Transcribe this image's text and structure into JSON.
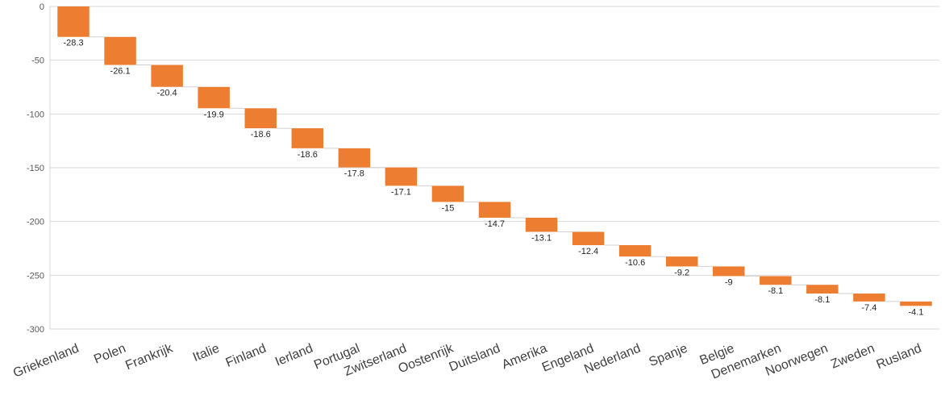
{
  "chart_data": {
    "type": "bar",
    "subtype": "waterfall",
    "categories": [
      "Griekenland",
      "Polen",
      "Frankrijk",
      "Italie",
      "Finland",
      "Ierland",
      "Portugal",
      "Zwitserland",
      "Oostenrijk",
      "Duitsland",
      "Amerika",
      "Engeland",
      "Nederland",
      "Spanje",
      "Belgie",
      "Denemarken",
      "Noorwegen",
      "Zweden",
      "Rusland"
    ],
    "values": [
      -28.3,
      -26.1,
      -20.4,
      -19.9,
      -18.6,
      -18.6,
      -17.8,
      -17.1,
      -15,
      -14.7,
      -13.1,
      -12.4,
      -10.6,
      -9.2,
      -9,
      -8.1,
      -8.1,
      -7.4,
      -4.1
    ],
    "data_labels": [
      "-28.3",
      "-26.1",
      "-20.4",
      "-19.9",
      "-18.6",
      "-18.6",
      "-17.8",
      "-17.1",
      "-15",
      "-14.7",
      "-13.1",
      "-12.4",
      "-10.6",
      "-9.2",
      "-9",
      "-8.1",
      "-8.1",
      "-7.4",
      "-4.1"
    ],
    "ylim": [
      -300,
      0
    ],
    "yticks": [
      0,
      -50,
      -100,
      -150,
      -200,
      -250,
      -300
    ],
    "ytick_labels": [
      "0",
      "-50",
      "-100",
      "-150",
      "-200",
      "-250",
      "-300"
    ],
    "grid": true,
    "legend": "none",
    "bar_color": "#ED7D31",
    "title": "",
    "xlabel": "",
    "ylabel": ""
  }
}
